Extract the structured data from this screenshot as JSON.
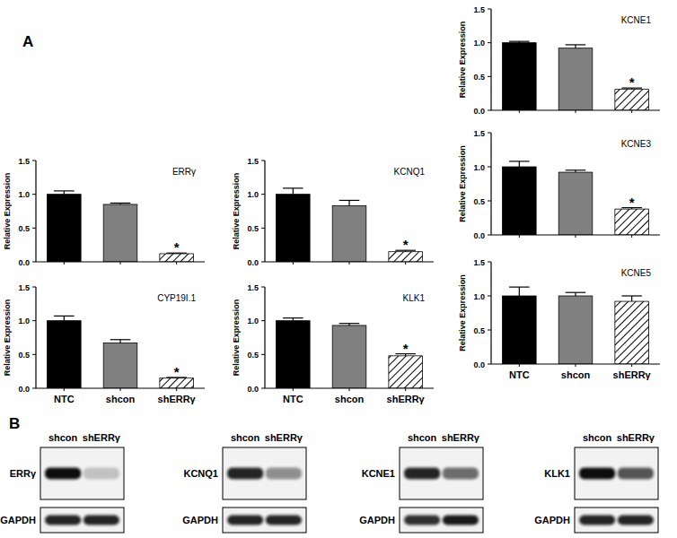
{
  "panel_labels": [
    "A",
    "B"
  ],
  "chart_data": [
    {
      "type": "bar",
      "title": "ERRγ",
      "ylabel": "Relative Expression",
      "categories": [
        "NTC",
        "shcon",
        "shERRγ"
      ],
      "values": [
        1.0,
        0.85,
        0.12
      ],
      "errors": [
        0.05,
        0.02,
        0.01
      ],
      "colors": [
        "#000000",
        "#808080",
        "#ffffff"
      ],
      "ylim": [
        0,
        1.5
      ],
      "yticks": [
        {
          "value": 0,
          "label": "0.0"
        },
        0.5,
        {
          "value": 1,
          "label": "1.0"
        },
        1.5
      ],
      "tick_labels": "y",
      "annotations": [
        {
          "text": "*",
          "category": "shERRγ"
        }
      ]
    },
    {
      "type": "bar",
      "title": "KCNQ1",
      "ylabel": "Relative Expression",
      "categories": [
        "NTC",
        "shcon",
        "shERRγ"
      ],
      "values": [
        1.0,
        0.83,
        0.15
      ],
      "errors": [
        0.09,
        0.08,
        0.02
      ],
      "colors": [
        "#000000",
        "#808080",
        "#ffffff"
      ],
      "ylim": [
        0,
        1.5
      ],
      "yticks": [
        {
          "value": 0,
          "label": "0.0"
        },
        0.5,
        {
          "value": 1,
          "label": "1.0"
        },
        1.5
      ],
      "tick_labels": "y",
      "annotations": [
        {
          "text": "*",
          "category": "shERRγ"
        }
      ]
    },
    {
      "type": "bar",
      "title": "KCNE1",
      "ylabel": "Relative Expression",
      "categories": [
        "NTC",
        "shcon",
        "shERRγ"
      ],
      "values": [
        1.0,
        0.92,
        0.31
      ],
      "errors": [
        0.02,
        0.05,
        0.02
      ],
      "colors": [
        "#000000",
        "#808080",
        "#ffffff"
      ],
      "ylim": [
        0,
        1.5
      ],
      "yticks": [
        {
          "value": 0,
          "label": "0.0"
        },
        0.5,
        {
          "value": 1,
          "label": "1.0"
        },
        1.5
      ],
      "tick_labels": "y",
      "annotations": [
        {
          "text": "*",
          "category": "shERRγ"
        }
      ]
    },
    {
      "type": "bar",
      "title": "KCNE3",
      "ylabel": "Relative Expression",
      "categories": [
        "NTC",
        "shcon",
        "shERRγ"
      ],
      "values": [
        1.0,
        0.92,
        0.38
      ],
      "errors": [
        0.08,
        0.03,
        0.02
      ],
      "colors": [
        "#000000",
        "#808080",
        "#ffffff"
      ],
      "ylim": [
        0,
        1.5
      ],
      "yticks": [
        {
          "value": 0,
          "label": "0.0"
        },
        0.5,
        {
          "value": 1,
          "label": "1.0"
        },
        1.5
      ],
      "tick_labels": "y",
      "annotations": [
        {
          "text": "*",
          "category": "shERRγ"
        }
      ]
    },
    {
      "type": "bar",
      "title": "CYP19I.1",
      "ylabel": "Relative Expression",
      "categories": [
        "NTC",
        "shcon",
        "shERRγ"
      ],
      "values": [
        1.0,
        0.67,
        0.15
      ],
      "errors": [
        0.07,
        0.05,
        0.01
      ],
      "colors": [
        "#000000",
        "#808080",
        "#ffffff"
      ],
      "ylim": [
        0,
        1.5
      ],
      "yticks": [
        {
          "value": 0,
          "label": "0.0"
        },
        0.5,
        {
          "value": 1,
          "label": "1.0"
        },
        1.5
      ],
      "annotations": [
        {
          "text": "*",
          "category": "shERRγ"
        }
      ]
    },
    {
      "type": "bar",
      "title": "KLK1",
      "ylabel": "Relative Expression",
      "categories": [
        "NTC",
        "shcon",
        "shERRγ"
      ],
      "values": [
        1.0,
        0.93,
        0.48
      ],
      "errors": [
        0.04,
        0.03,
        0.03
      ],
      "colors": [
        "#000000",
        "#808080",
        "#ffffff"
      ],
      "ylim": [
        0,
        1.5
      ],
      "yticks": [
        {
          "value": 0,
          "label": "0.0"
        },
        0.5,
        {
          "value": 1,
          "label": "1.0"
        },
        1.5
      ],
      "annotations": [
        {
          "text": "*",
          "category": "shERRγ"
        }
      ]
    },
    {
      "type": "bar",
      "title": "KCNE5",
      "ylabel": "Relative Expression",
      "categories": [
        "NTC",
        "shcon",
        "shERRγ"
      ],
      "values": [
        1.0,
        1.0,
        0.92
      ],
      "errors": [
        0.13,
        0.05,
        0.08
      ],
      "colors": [
        "#000000",
        "#808080",
        "#ffffff"
      ],
      "ylim": [
        0,
        1.5
      ],
      "yticks": [
        {
          "value": 0,
          "label": "0.0"
        },
        0.5,
        {
          "value": 1,
          "label": "1.0"
        },
        1.5
      ]
    }
  ],
  "blots": [
    {
      "header": [
        "shcon",
        "shERRγ"
      ],
      "rows": [
        {
          "label": "ERRγ",
          "intensity": [
            1.0,
            0.2
          ]
        },
        {
          "label": "GAPDH",
          "intensity": [
            0.9,
            0.9
          ]
        }
      ]
    },
    {
      "header": [
        "shcon",
        "shERRγ"
      ],
      "rows": [
        {
          "label": "KCNQ1",
          "intensity": [
            0.9,
            0.45
          ]
        },
        {
          "label": "GAPDH",
          "intensity": [
            0.9,
            0.9
          ]
        }
      ]
    },
    {
      "header": [
        "shcon",
        "shERRγ"
      ],
      "rows": [
        {
          "label": "KCNE1",
          "intensity": [
            0.9,
            0.6
          ]
        },
        {
          "label": "GAPDH",
          "intensity": [
            0.85,
            0.95
          ]
        }
      ]
    },
    {
      "header": [
        "shcon",
        "shERRγ"
      ],
      "rows": [
        {
          "label": "KLK1",
          "intensity": [
            1.0,
            0.7
          ]
        },
        {
          "label": "GAPDH",
          "intensity": [
            0.9,
            0.9
          ]
        }
      ]
    }
  ]
}
